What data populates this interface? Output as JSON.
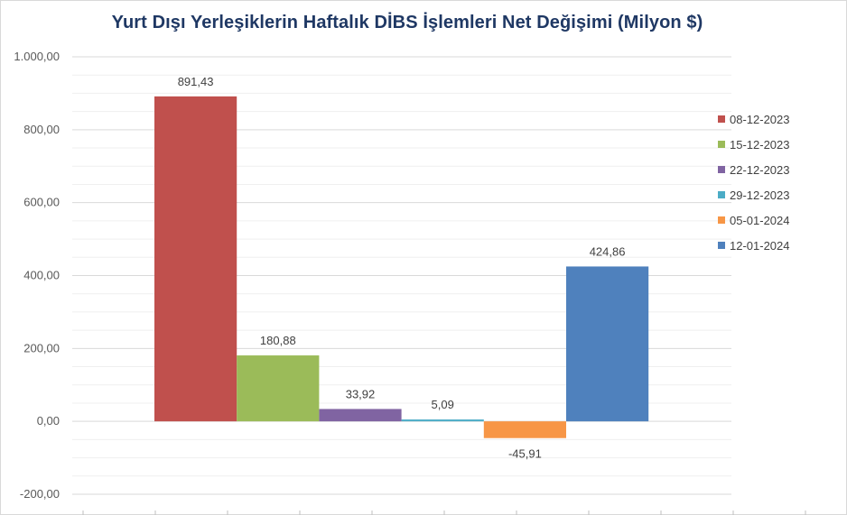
{
  "chart_data": {
    "type": "bar",
    "title": "Yurt Dışı Yerleşiklerin Haftalık DİBS İşlemleri Net Değişimi (Milyon $)",
    "series": [
      {
        "name": "08-12-2023",
        "value": 891.43,
        "label": "891,43",
        "color": "#c0504d"
      },
      {
        "name": "15-12-2023",
        "value": 180.88,
        "label": "180,88",
        "color": "#9bbb59"
      },
      {
        "name": "22-12-2023",
        "value": 33.92,
        "label": "33,92",
        "color": "#8064a2"
      },
      {
        "name": "29-12-2023",
        "value": 5.09,
        "label": "5,09",
        "color": "#4bacc6"
      },
      {
        "name": "05-01-2024",
        "value": -45.91,
        "label": "-45,91",
        "color": "#f79646"
      },
      {
        "name": "12-01-2024",
        "value": 424.86,
        "label": "424,86",
        "color": "#4f81bd"
      }
    ],
    "ylim": [
      -200,
      1000
    ],
    "yticks": [
      {
        "value": 1000,
        "label": "1.000,00"
      },
      {
        "value": 800,
        "label": "800,00"
      },
      {
        "value": 600,
        "label": "600,00"
      },
      {
        "value": 400,
        "label": "400,00"
      },
      {
        "value": 200,
        "label": "200,00"
      },
      {
        "value": 0,
        "label": "0,00"
      },
      {
        "value": -200,
        "label": "-200,00"
      }
    ],
    "grid": true,
    "legend_position": "right"
  }
}
